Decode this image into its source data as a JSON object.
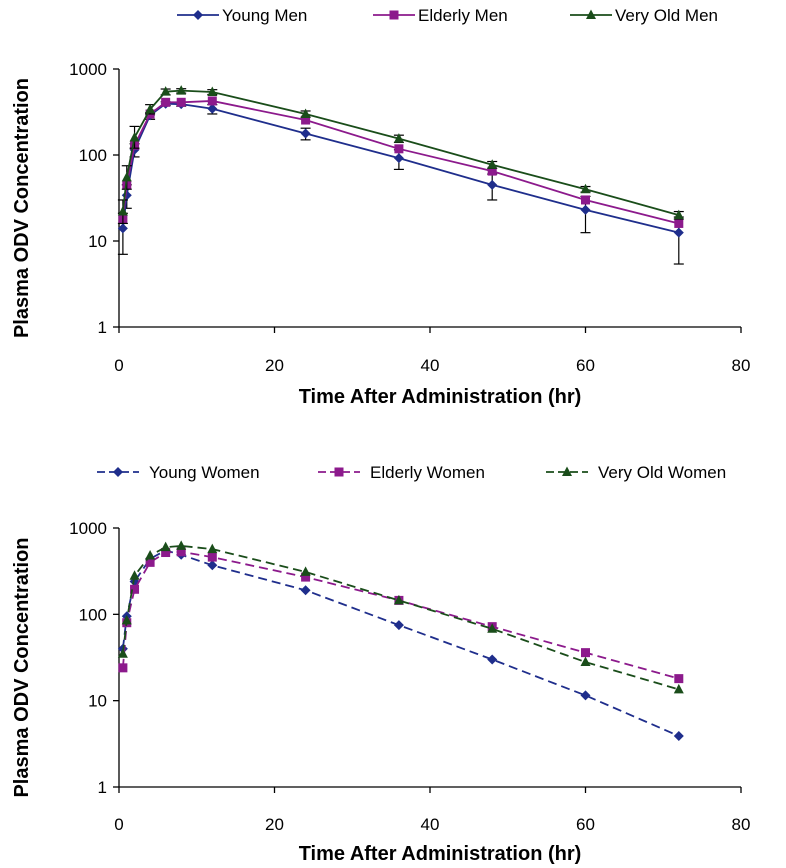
{
  "chart_data": [
    {
      "type": "line",
      "title": "",
      "xlabel": "Time After Administration (hr)",
      "ylabel": "Plasma ODV Concentration",
      "xlim": [
        0,
        80
      ],
      "ylim": [
        1,
        1000
      ],
      "yscale": "log",
      "x_ticks": [
        "0",
        "20",
        "40",
        "60",
        "80"
      ],
      "y_ticks": [
        "1",
        "10",
        "100",
        "1000"
      ],
      "grid": false,
      "legend_position": "top",
      "line_style": "solid",
      "series": [
        {
          "name": "Young Men",
          "color": "#1f2e8c",
          "marker": "diamond",
          "x": [
            0.5,
            1,
            2,
            4,
            6,
            8,
            12,
            24,
            36,
            48,
            60,
            72
          ],
          "y": [
            14,
            34,
            115,
            290,
            395,
            390,
            345,
            178,
            92,
            45,
            23,
            12.5
          ],
          "err_low": [
            7,
            24,
            95,
            260,
            375,
            370,
            300,
            150,
            68,
            30,
            12.5,
            5.4
          ],
          "err_high": [
            21,
            45,
            135,
            310,
            415,
            410,
            385,
            205,
            115,
            60,
            33,
            19
          ]
        },
        {
          "name": "Elderly Men",
          "color": "#8c1a8c",
          "marker": "square",
          "x": [
            0.5,
            1,
            2,
            4,
            6,
            8,
            12,
            24,
            36,
            48,
            60,
            72
          ],
          "y": [
            18,
            45,
            130,
            300,
            410,
            410,
            425,
            255,
            118,
            65,
            30,
            16
          ],
          "err_low": [],
          "err_high": []
        },
        {
          "name": "Very Old Men",
          "color": "#1a4d1a",
          "marker": "triangle",
          "x": [
            0.5,
            1,
            2,
            4,
            6,
            8,
            12,
            24,
            36,
            48,
            60,
            72
          ],
          "y": [
            22,
            55,
            160,
            340,
            545,
            560,
            540,
            300,
            155,
            77,
            40,
            20
          ],
          "err_low": [
            16,
            40,
            120,
            300,
            500,
            525,
            505,
            275,
            140,
            70,
            37,
            18
          ],
          "err_high": [
            30,
            75,
            215,
            385,
            585,
            590,
            575,
            325,
            170,
            84,
            43,
            22
          ]
        }
      ]
    },
    {
      "type": "line",
      "title": "",
      "xlabel": "Time After Administration (hr)",
      "ylabel": "Plasma ODV Concentration",
      "xlim": [
        0,
        80
      ],
      "ylim": [
        1,
        1000
      ],
      "yscale": "log",
      "x_ticks": [
        "0",
        "20",
        "40",
        "60",
        "80"
      ],
      "y_ticks": [
        "1",
        "10",
        "100",
        "1000"
      ],
      "grid": false,
      "legend_position": "top",
      "line_style": "dashed",
      "series": [
        {
          "name": "Young Women",
          "color": "#1f2e8c",
          "marker": "diamond",
          "x": [
            0.5,
            1,
            2,
            4,
            6,
            8,
            12,
            24,
            36,
            48,
            60,
            72
          ],
          "y": [
            40,
            95,
            240,
            440,
            550,
            490,
            370,
            190,
            75,
            30,
            11.5,
            3.9
          ]
        },
        {
          "name": "Elderly Women",
          "color": "#8c1a8c",
          "marker": "square",
          "x": [
            0.5,
            1,
            2,
            4,
            6,
            8,
            12,
            24,
            36,
            48,
            60,
            72
          ],
          "y": [
            24,
            80,
            195,
            400,
            520,
            530,
            460,
            270,
            145,
            72,
            36,
            18
          ]
        },
        {
          "name": "Very Old Women",
          "color": "#1a4d1a",
          "marker": "triangle",
          "x": [
            0.5,
            1,
            2,
            4,
            6,
            8,
            12,
            24,
            36,
            48,
            60,
            72
          ],
          "y": [
            35,
            85,
            280,
            480,
            600,
            620,
            570,
            310,
            145,
            68,
            28,
            13.5
          ]
        }
      ]
    }
  ]
}
